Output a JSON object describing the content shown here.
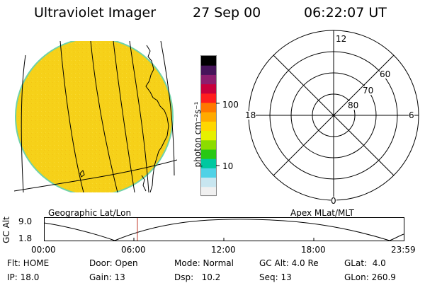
{
  "header": {
    "title": "Ultraviolet Imager",
    "date": "27 Sep 00",
    "time": "06:22:07 UT"
  },
  "colorbar": {
    "unit_label": "photon cm⁻²s⁻¹",
    "ticks": [
      "100",
      "10"
    ],
    "colors": [
      "#f0f0f0",
      "#c8e6f0",
      "#50d2e6",
      "#00c8a0",
      "#28c814",
      "#8cdc00",
      "#e6f000",
      "#ffd700",
      "#ffaa00",
      "#ff7800",
      "#ff1e1e",
      "#c8003c",
      "#8c1e6e",
      "#46145a",
      "#000000"
    ]
  },
  "left_panel": {
    "label": "Geographic Lat/Lon",
    "disk_color": "#f7d317",
    "rim_color": "#6fd2a8"
  },
  "right_panel": {
    "label": "Apex MLat/MLT",
    "mlt_labels": {
      "top": "12",
      "left": "18",
      "right": "6",
      "bottom": "0"
    },
    "lat_labels": [
      "60",
      "70",
      "80"
    ]
  },
  "orbit": {
    "axis_label": "GC Alt",
    "y_ticks": [
      "9.0",
      "1.8"
    ],
    "time_ticks": [
      "00:00",
      "06:00",
      "12:00",
      "18:00",
      "23:59"
    ],
    "marker_color": "#c0392b"
  },
  "info": {
    "row1": [
      "Flt: HOME",
      "Door: Open",
      "Mode: Normal",
      "GC Alt: 4.0 Re",
      "GLat:  4.0"
    ],
    "row2": [
      "IP: 18.0",
      "Gain: 13",
      "Dsp:   10.2",
      "Seq: 13",
      "GLon: 260.9"
    ]
  }
}
